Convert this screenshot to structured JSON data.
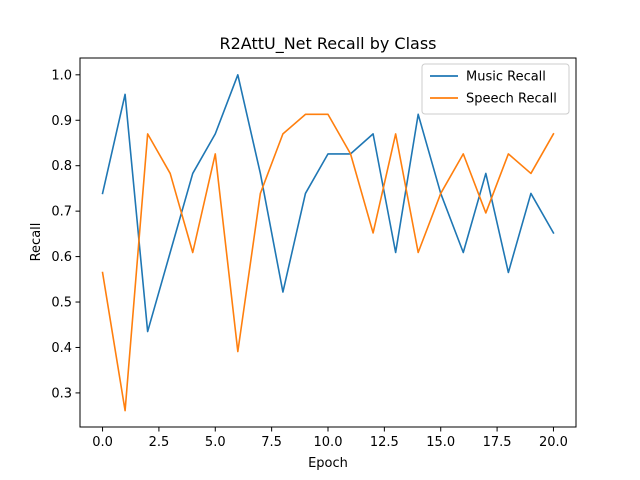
{
  "chart_data": {
    "type": "line",
    "title": "R2AttU_Net Recall by Class",
    "xlabel": "Epoch",
    "ylabel": "Recall",
    "xlim": [
      -1,
      21
    ],
    "ylim": [
      0.225,
      1.037
    ],
    "xticks": [
      0.0,
      2.5,
      5.0,
      7.5,
      10.0,
      12.5,
      15.0,
      17.5,
      20.0
    ],
    "xtick_labels": [
      "0.0",
      "2.5",
      "5.0",
      "7.5",
      "10.0",
      "12.5",
      "15.0",
      "17.5",
      "20.0"
    ],
    "yticks": [
      0.3,
      0.4,
      0.5,
      0.6,
      0.7,
      0.8,
      0.9,
      1.0
    ],
    "ytick_labels": [
      "0.3",
      "0.4",
      "0.5",
      "0.6",
      "0.7",
      "0.8",
      "0.9",
      "1.0"
    ],
    "grid": false,
    "legend_position": "top-right",
    "x": [
      0,
      1,
      2,
      3,
      4,
      5,
      6,
      7,
      8,
      9,
      10,
      11,
      12,
      13,
      14,
      15,
      16,
      17,
      18,
      19,
      20
    ],
    "series": [
      {
        "name": "Music Recall",
        "color": "#1f77b4",
        "values": [
          0.739,
          0.957,
          0.435,
          0.609,
          0.783,
          0.87,
          1.0,
          0.783,
          0.522,
          0.739,
          0.826,
          0.826,
          0.87,
          0.609,
          0.913,
          0.739,
          0.609,
          0.783,
          0.565,
          0.739,
          0.652
        ]
      },
      {
        "name": "Speech Recall",
        "color": "#ff7f0e",
        "values": [
          0.565,
          0.261,
          0.87,
          0.783,
          0.609,
          0.826,
          0.391,
          0.739,
          0.87,
          0.913,
          0.913,
          0.826,
          0.652,
          0.87,
          0.609,
          0.739,
          0.826,
          0.696,
          0.826,
          0.783,
          0.87
        ]
      }
    ]
  }
}
